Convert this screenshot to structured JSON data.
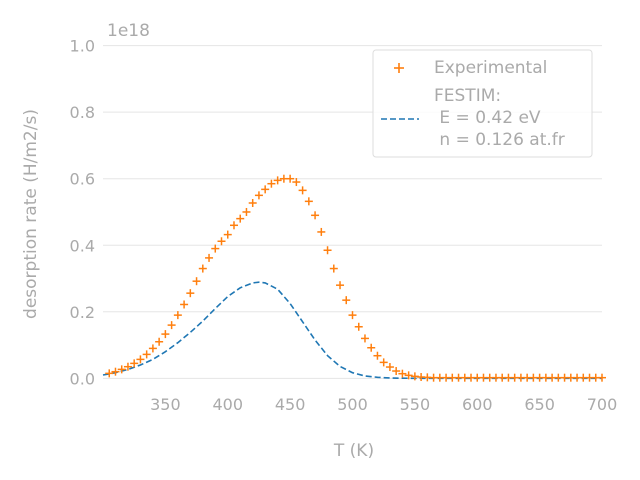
{
  "chart_data": {
    "type": "scatter",
    "xlabel": "T (K)",
    "ylabel": "desorption rate (H/m2/s)",
    "y_offset_text": "1e18",
    "xlim": [
      300,
      700
    ],
    "ylim": [
      -0.02,
      1.08
    ],
    "x_ticks": [
      350,
      400,
      450,
      500,
      550,
      600,
      650,
      700
    ],
    "x_tick_labels": [
      "350",
      "400",
      "450",
      "500",
      "550",
      "600",
      "650",
      "700"
    ],
    "y_ticks": [
      0.0,
      0.2,
      0.4,
      0.6,
      0.8,
      1.0
    ],
    "y_tick_labels": [
      "0.0",
      "0.2",
      "0.4",
      "0.6",
      "0.8",
      "1.0"
    ],
    "grid": "horizontal",
    "legend_position": "top-right",
    "legend": {
      "experimental_label": "Experimental",
      "festim_label": "FESTIM:",
      "festim_line1": " E = 0.42 eV",
      "festim_line2": " n = 0.126 at.fr"
    },
    "colors": {
      "experimental": "#ff7f0e",
      "festim": "#1f77b4",
      "grid": "#e5e5e5",
      "text": "#aaaaaa"
    },
    "series": [
      {
        "name": "Experimental",
        "kind": "scatter",
        "marker": "plus",
        "x": [
          305,
          310,
          315,
          320,
          325,
          330,
          335,
          340,
          345,
          350,
          355,
          360,
          365,
          370,
          375,
          380,
          385,
          390,
          395,
          400,
          405,
          410,
          415,
          420,
          425,
          430,
          435,
          440,
          445,
          450,
          455,
          460,
          465,
          470,
          475,
          480,
          485,
          490,
          495,
          500,
          505,
          510,
          515,
          520,
          525,
          530,
          535,
          540,
          545,
          550,
          555,
          560,
          565,
          570,
          575,
          580,
          585,
          590,
          595,
          600,
          605,
          610,
          615,
          620,
          625,
          630,
          635,
          640,
          645,
          650,
          655,
          660,
          665,
          670,
          675,
          680,
          685,
          690,
          695,
          700
        ],
        "y": [
          0.015,
          0.02,
          0.027,
          0.035,
          0.045,
          0.057,
          0.072,
          0.09,
          0.11,
          0.133,
          0.16,
          0.19,
          0.222,
          0.256,
          0.292,
          0.33,
          0.362,
          0.39,
          0.412,
          0.432,
          0.46,
          0.48,
          0.5,
          0.527,
          0.55,
          0.568,
          0.585,
          0.595,
          0.6,
          0.6,
          0.59,
          0.565,
          0.532,
          0.49,
          0.44,
          0.385,
          0.33,
          0.28,
          0.235,
          0.19,
          0.155,
          0.12,
          0.092,
          0.068,
          0.048,
          0.034,
          0.022,
          0.014,
          0.009,
          0.006,
          0.004,
          0.003,
          0.002,
          0.002,
          0.002,
          0.002,
          0.002,
          0.002,
          0.002,
          0.002,
          0.002,
          0.002,
          0.002,
          0.002,
          0.002,
          0.002,
          0.002,
          0.002,
          0.002,
          0.002,
          0.002,
          0.002,
          0.002,
          0.002,
          0.002,
          0.002,
          0.002,
          0.002,
          0.002,
          0.002
        ]
      },
      {
        "name": "FESTIM",
        "kind": "line",
        "style": "dashed",
        "x": [
          300,
          310,
          320,
          330,
          340,
          350,
          360,
          370,
          380,
          390,
          400,
          410,
          420,
          425,
          430,
          440,
          450,
          460,
          470,
          480,
          490,
          500,
          510,
          520,
          530,
          540,
          550,
          560,
          580,
          600,
          650,
          700
        ],
        "y": [
          0.01,
          0.017,
          0.027,
          0.04,
          0.057,
          0.08,
          0.107,
          0.138,
          0.172,
          0.21,
          0.246,
          0.272,
          0.287,
          0.289,
          0.287,
          0.268,
          0.225,
          0.17,
          0.115,
          0.068,
          0.036,
          0.017,
          0.007,
          0.003,
          0.001,
          0.0005,
          0.0002,
          0.0001,
          0,
          0,
          0,
          0
        ]
      }
    ]
  }
}
